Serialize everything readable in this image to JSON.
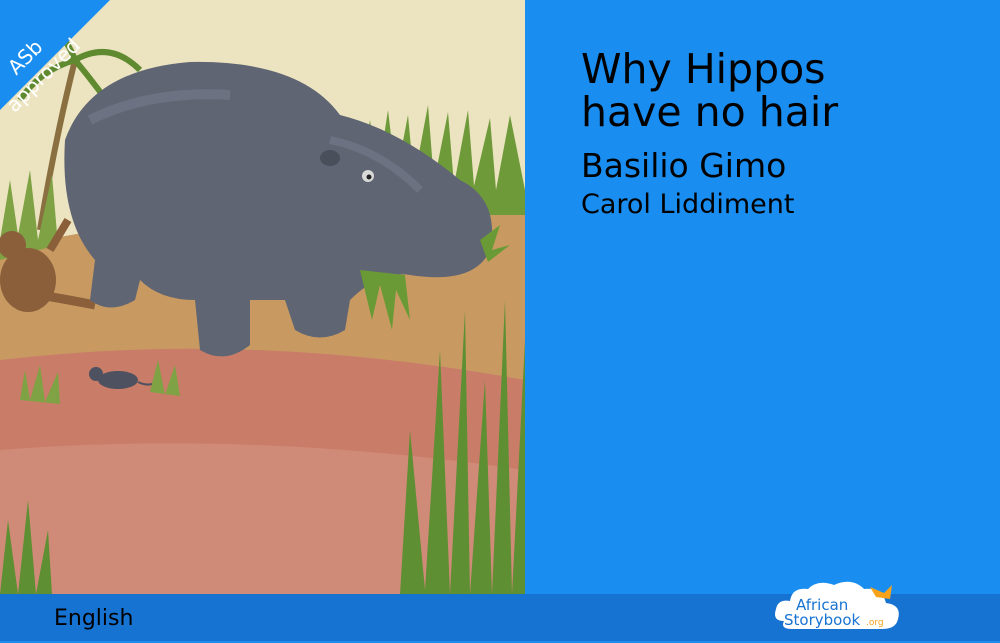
{
  "badge": {
    "line1": "ASb",
    "line2": "approved"
  },
  "book": {
    "title_line1": "Why Hippos",
    "title_line2": "have no hair",
    "author": "Basilio Gimo",
    "illustrator": "Carol Liddiment"
  },
  "footer": {
    "language": "English"
  },
  "logo": {
    "line1": "African",
    "line2": "Storybook",
    "suffix": ".org"
  },
  "colors": {
    "panel": "#1a8ef0",
    "footer": "#1773d1",
    "badge": "#1a8ef0"
  },
  "icons": {
    "cover": "hippo-illustration",
    "logo": "book-cloud-icon"
  }
}
